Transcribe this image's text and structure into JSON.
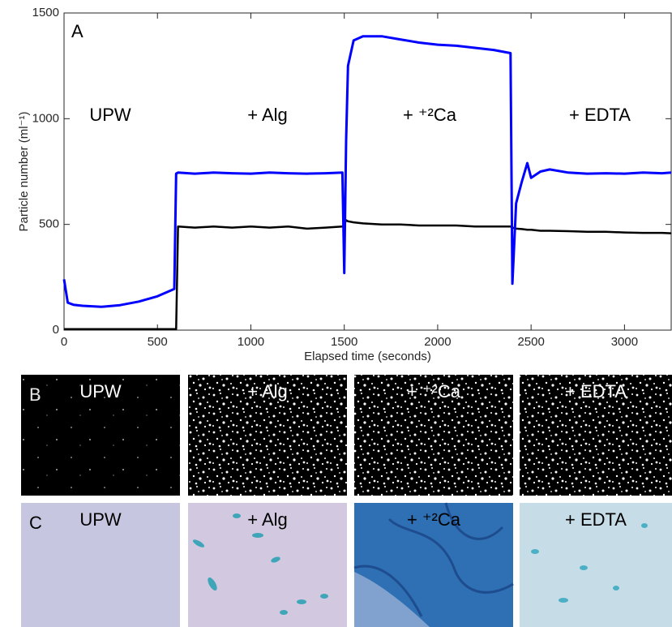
{
  "chart_data": {
    "type": "line",
    "panel_label": "A",
    "xlabel": "Elapsed time (seconds)",
    "ylabel": "Particle number (ml⁻¹)",
    "annotations": [
      "UPW",
      "+ Alg",
      "+ ⁺²Ca",
      "+ EDTA"
    ],
    "x": [
      0,
      20,
      50,
      100,
      200,
      300,
      400,
      500,
      590,
      600,
      610,
      700,
      800,
      900,
      1000,
      1100,
      1200,
      1300,
      1400,
      1490,
      1500,
      1510,
      1520,
      1550,
      1600,
      1700,
      1800,
      1900,
      2000,
      2100,
      2200,
      2300,
      2390,
      2400,
      2420,
      2450,
      2480,
      2500,
      2550,
      2600,
      2700,
      2800,
      2900,
      3000,
      3100,
      3200,
      3250
    ],
    "series": [
      {
        "color": "#0000ff",
        "values": [
          240,
          130,
          120,
          115,
          110,
          118,
          135,
          160,
          195,
          740,
          745,
          740,
          745,
          742,
          740,
          745,
          742,
          740,
          742,
          745,
          270,
          900,
          1250,
          1370,
          1390,
          1390,
          1375,
          1360,
          1350,
          1345,
          1335,
          1325,
          1310,
          220,
          600,
          700,
          790,
          720,
          750,
          760,
          745,
          740,
          742,
          740,
          745,
          742,
          745
        ]
      },
      {
        "color": "#000000",
        "values": [
          5,
          5,
          5,
          5,
          5,
          5,
          5,
          5,
          5,
          5,
          490,
          485,
          490,
          485,
          490,
          485,
          490,
          480,
          485,
          490,
          500,
          520,
          515,
          510,
          505,
          500,
          500,
          495,
          495,
          495,
          490,
          490,
          490,
          485,
          480,
          478,
          475,
          475,
          470,
          470,
          468,
          465,
          465,
          462,
          460,
          460,
          458
        ]
      }
    ],
    "xlim": [
      0,
      3250
    ],
    "ylim": [
      0,
      1500
    ],
    "xticks": [
      0,
      500,
      1000,
      1500,
      2000,
      2500,
      3000
    ],
    "yticks": [
      0,
      500,
      1000,
      1500
    ]
  },
  "image_panels": [
    {
      "label": "B",
      "captions": [
        "UPW",
        "+ Alg",
        "+ ⁺²Ca",
        "+ EDTA"
      ]
    },
    {
      "label": "C",
      "captions": [
        "UPW",
        "+ Alg",
        "+ ⁺²Ca",
        "+ EDTA"
      ]
    }
  ]
}
